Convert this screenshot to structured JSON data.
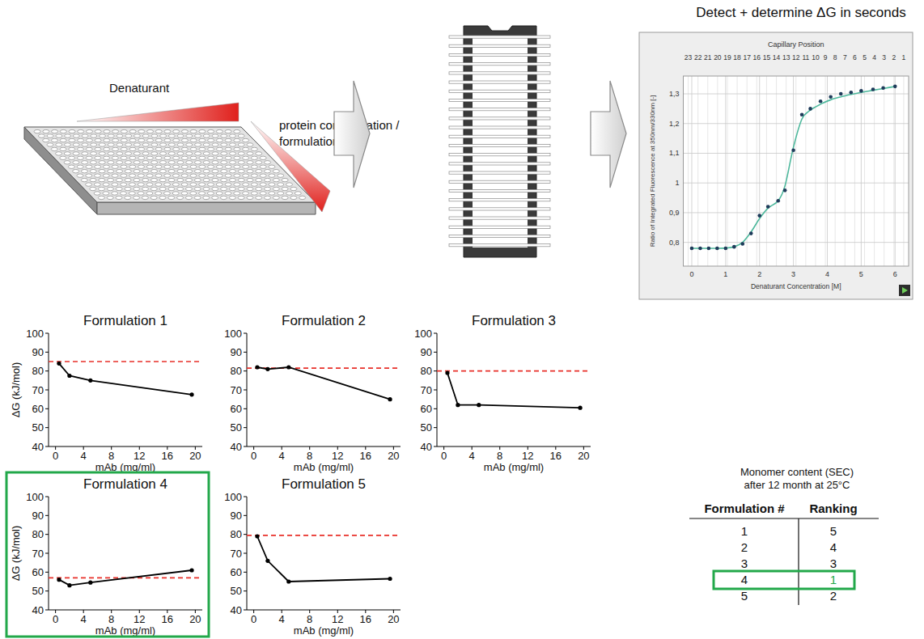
{
  "workflow": {
    "denaturant_label": "Denaturant",
    "formulation_label": "protein concentration / formulation",
    "result_title": "Detect + determine ΔG in seconds"
  },
  "chart_data": [
    {
      "type": "scatter",
      "x2_label": "Capillary Position",
      "x_label": "Denaturant Concentration [M]",
      "y_label": "Ratio of Integrated Fluorescence at 350nm/330nm [-]",
      "x": [
        0,
        0.25,
        0.5,
        0.75,
        1.0,
        1.25,
        1.5,
        1.75,
        2.0,
        2.25,
        2.55,
        2.75,
        3.0,
        3.25,
        3.5,
        3.8,
        4.1,
        4.4,
        4.7,
        5.0,
        5.35,
        5.65,
        6.0
      ],
      "series": [
        {
          "type": "scatter",
          "color": "#1f3b5a",
          "marker": "circle",
          "values": [
            0.78,
            0.78,
            0.78,
            0.78,
            0.78,
            0.785,
            0.795,
            0.83,
            0.89,
            0.92,
            0.94,
            0.975,
            1.11,
            1.23,
            1.25,
            1.275,
            1.29,
            1.3,
            1.305,
            1.31,
            1.315,
            1.32,
            1.325
          ]
        },
        {
          "type": "line",
          "color": "#4db89c",
          "values": [
            0.78,
            0.78,
            0.78,
            0.78,
            0.781,
            0.785,
            0.8,
            0.835,
            0.88,
            0.915,
            0.94,
            0.99,
            1.12,
            1.215,
            1.245,
            1.265,
            1.28,
            1.29,
            1.298,
            1.305,
            1.312,
            1.318,
            1.325
          ]
        }
      ],
      "xlim": [
        -0.25,
        6.4
      ],
      "xticks": [
        0,
        1,
        2,
        3,
        4,
        5,
        6
      ],
      "x2lim": [
        23.5,
        0.5
      ],
      "x2ticks": [
        23,
        22,
        21,
        20,
        19,
        18,
        17,
        16,
        15,
        14,
        13,
        12,
        11,
        10,
        9,
        8,
        7,
        6,
        5,
        4,
        3,
        2,
        1
      ],
      "ylim": [
        0.72,
        1.36
      ],
      "yticks": [
        {
          "value": 0.8,
          "label": "0,8"
        },
        {
          "value": 0.9,
          "label": "0,9"
        },
        1,
        {
          "value": 1.1,
          "label": "1,1"
        },
        {
          "value": 1.2,
          "label": "1,2"
        },
        {
          "value": 1.3,
          "label": "1,3"
        }
      ],
      "grid": true
    },
    {
      "type": "line",
      "title": "Formulation 1",
      "x_label": "mAb (mg/ml)",
      "y_label": "ΔG (kJ/mol)",
      "x": [
        0.5,
        2,
        5,
        19.5
      ],
      "values": [
        84,
        77.5,
        75,
        67.5
      ],
      "color": "#000000",
      "marker": "circle",
      "xlim": [
        -1,
        21
      ],
      "xticks": [
        0,
        4,
        8,
        12,
        16,
        20
      ],
      "ylim": [
        40,
        100
      ],
      "yticks": [
        40,
        50,
        60,
        70,
        80,
        90,
        100
      ],
      "reference_line": {
        "value": 85,
        "color": "#e8302a",
        "line_style": "dashed"
      }
    },
    {
      "type": "line",
      "title": "Formulation 2",
      "x_label": "mAb (mg/ml)",
      "x": [
        0.5,
        2,
        5,
        19.5
      ],
      "values": [
        82,
        81,
        82,
        65
      ],
      "color": "#000000",
      "marker": "circle",
      "xlim": [
        -1,
        21
      ],
      "xticks": [
        0,
        4,
        8,
        12,
        16,
        20
      ],
      "ylim": [
        40,
        100
      ],
      "yticks": [
        40,
        50,
        60,
        70,
        80,
        90,
        100
      ],
      "reference_line": {
        "value": 81.5,
        "color": "#e8302a",
        "line_style": "dashed"
      }
    },
    {
      "type": "line",
      "title": "Formulation 3",
      "x_label": "mAb (mg/ml)",
      "x": [
        0.5,
        2,
        5,
        19.5
      ],
      "values": [
        79,
        62,
        62,
        60.5
      ],
      "color": "#000000",
      "marker": "circle",
      "xlim": [
        -1,
        21
      ],
      "xticks": [
        0,
        4,
        8,
        12,
        16,
        20
      ],
      "ylim": [
        40,
        100
      ],
      "yticks": [
        40,
        50,
        60,
        70,
        80,
        90,
        100
      ],
      "reference_line": {
        "value": 80,
        "color": "#e8302a",
        "line_style": "dashed"
      }
    },
    {
      "type": "line",
      "title": "Formulation 4",
      "x_label": "mAb (mg/ml)",
      "y_label": "ΔG (kJ/mol)",
      "x": [
        0.5,
        2,
        5,
        19.5
      ],
      "values": [
        56,
        53,
        54.5,
        61
      ],
      "color": "#000000",
      "marker": "circle",
      "xlim": [
        -1,
        21
      ],
      "xticks": [
        0,
        4,
        8,
        12,
        16,
        20
      ],
      "ylim": [
        40,
        100
      ],
      "yticks": [
        40,
        50,
        60,
        70,
        80,
        90,
        100
      ],
      "reference_line": {
        "value": 57,
        "color": "#e8302a",
        "line_style": "dashed"
      }
    },
    {
      "type": "line",
      "title": "Formulation 5",
      "x_label": "mAb (mg/ml)",
      "x": [
        0.5,
        2,
        5,
        19.5
      ],
      "values": [
        79,
        66,
        55,
        56.5
      ],
      "color": "#000000",
      "marker": "circle",
      "xlim": [
        -1,
        21
      ],
      "xticks": [
        0,
        4,
        8,
        12,
        16,
        20
      ],
      "ylim": [
        40,
        100
      ],
      "yticks": [
        40,
        50,
        60,
        70,
        80,
        90,
        100
      ],
      "reference_line": {
        "value": 79.5,
        "color": "#e8302a",
        "line_style": "dashed"
      }
    }
  ],
  "table": {
    "title": [
      "Monomer content (SEC)",
      "after 12 month at 25°C"
    ],
    "columns": [
      "Formulation #",
      "Ranking"
    ],
    "rows": [
      [
        1,
        5
      ],
      [
        2,
        4
      ],
      [
        3,
        3
      ],
      [
        4,
        1
      ],
      [
        5,
        2
      ]
    ]
  },
  "highlight": {
    "formulation": 4,
    "color": "#22a84a"
  }
}
